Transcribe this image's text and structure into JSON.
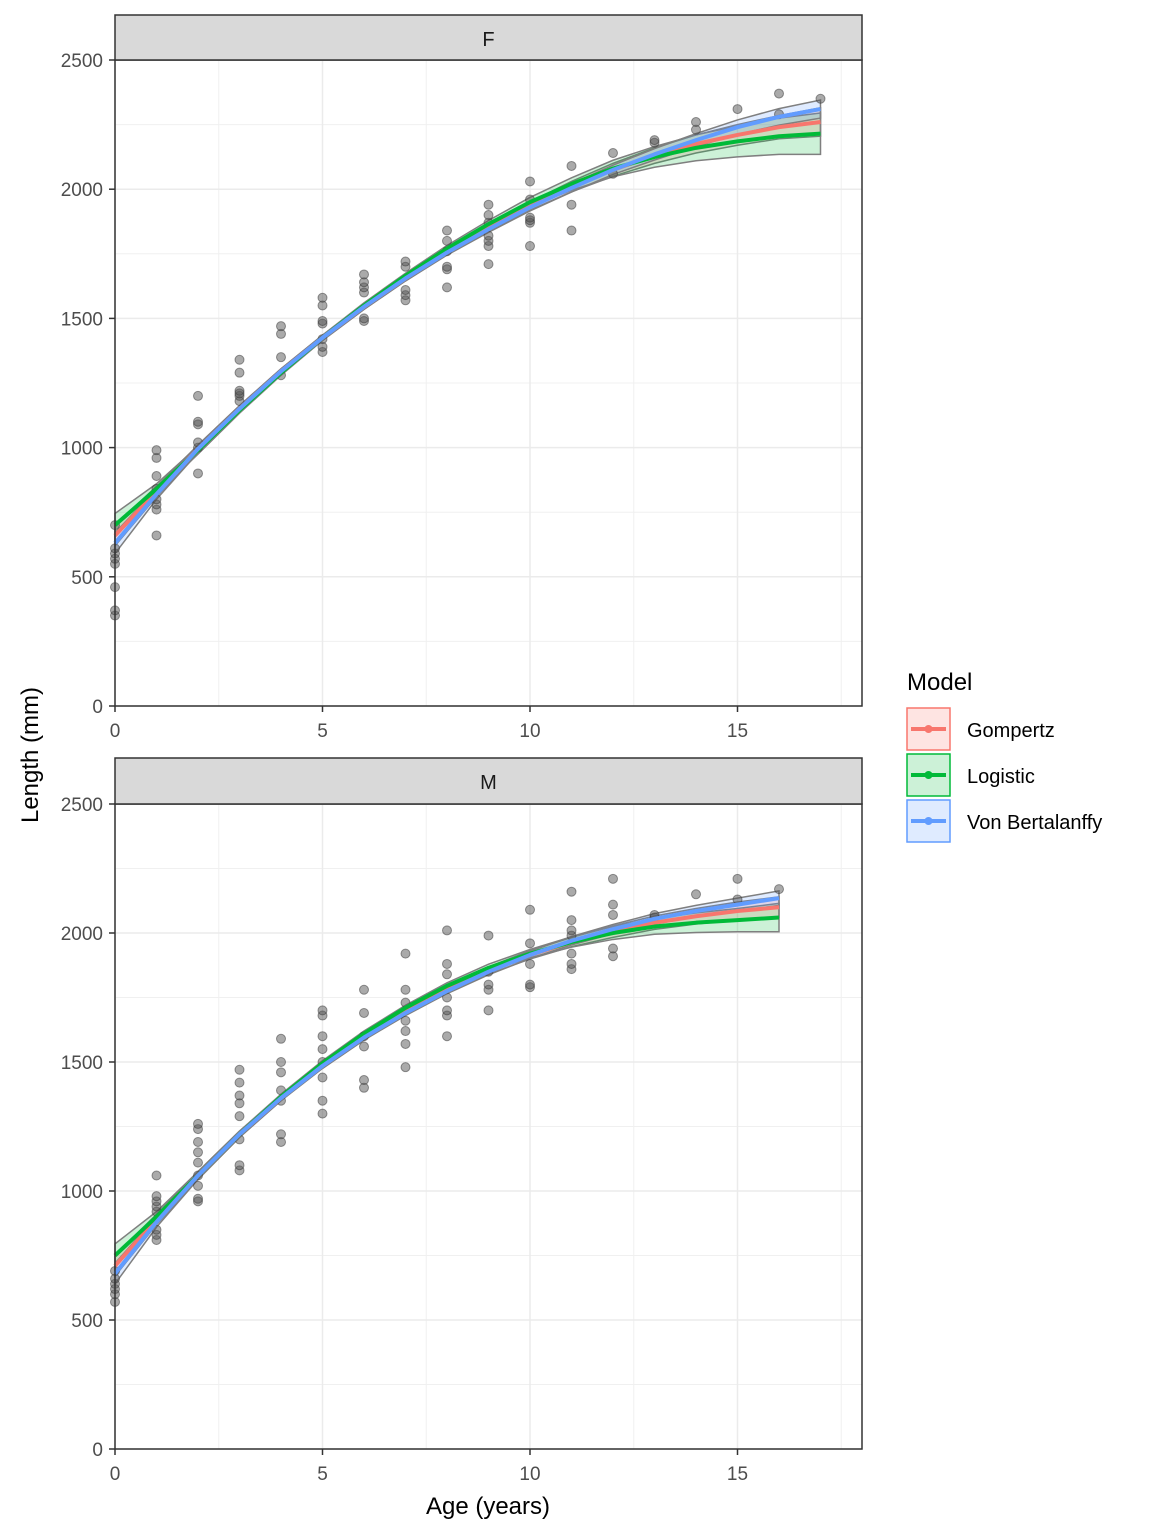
{
  "chart_data": {
    "type": "scatter",
    "xlabel": "Age (years)",
    "ylabel": "Length (mm)",
    "xlim": [
      0,
      18
    ],
    "ylim": [
      0,
      2500
    ],
    "x_ticks": [
      0,
      5,
      10,
      15
    ],
    "y_ticks": [
      0,
      500,
      1000,
      1500,
      2000,
      2500
    ],
    "grid": true,
    "legend": {
      "title": "Model",
      "position": "right",
      "entries": [
        {
          "name": "Gompertz",
          "color": "#F8766D"
        },
        {
          "name": "Logistic",
          "color": "#00BA38"
        },
        {
          "name": "Von Bertalanffy",
          "color": "#619CFF"
        }
      ]
    },
    "point_color": "#555555",
    "panels": [
      {
        "strip": "F",
        "points": {
          "0": [
            350,
            370,
            460,
            550,
            570,
            590,
            610,
            700
          ],
          "1": [
            660,
            760,
            780,
            800,
            840,
            890,
            960,
            990
          ],
          "2": [
            900,
            1000,
            1020,
            1090,
            1100,
            1200
          ],
          "3": [
            1180,
            1200,
            1210,
            1220,
            1290,
            1340
          ],
          "4": [
            1280,
            1350,
            1440,
            1470
          ],
          "5": [
            1370,
            1390,
            1420,
            1480,
            1490,
            1550,
            1580
          ],
          "6": [
            1490,
            1500,
            1600,
            1620,
            1640,
            1670
          ],
          "7": [
            1570,
            1590,
            1610,
            1700,
            1720
          ],
          "8": [
            1620,
            1690,
            1700,
            1760,
            1800,
            1840
          ],
          "9": [
            1710,
            1780,
            1800,
            1820,
            1870,
            1900,
            1940
          ],
          "10": [
            1780,
            1870,
            1880,
            1890,
            1960,
            2030
          ],
          "11": [
            1840,
            1940,
            2090
          ],
          "12": [
            2060,
            2140
          ],
          "13": [
            2180,
            2190
          ],
          "14": [
            2230,
            2260
          ],
          "15": [
            2310
          ],
          "16": [
            2290,
            2370
          ],
          "17": [
            2350
          ]
        },
        "models": [
          {
            "name": "Gompertz",
            "fit": [
              660,
              830,
              995,
              1150,
              1295,
              1425,
              1545,
              1655,
              1760,
              1850,
              1935,
              2010,
              2075,
              2130,
              2175,
              2210,
              2240,
              2260
            ],
            "lower": [
              620,
              810,
              980,
              1138,
              1285,
              1415,
              1535,
              1645,
              1748,
              1836,
              1919,
              1990,
              2050,
              2100,
              2140,
              2170,
              2195,
              2205
            ],
            "upper": [
              700,
              850,
              1010,
              1162,
              1305,
              1435,
              1555,
              1665,
              1772,
              1864,
              1951,
              2030,
              2100,
              2160,
              2210,
              2250,
              2285,
              2315
            ]
          },
          {
            "name": "Logistic",
            "fit": [
              700,
              840,
              990,
              1145,
              1290,
              1425,
              1550,
              1665,
              1770,
              1865,
              1950,
              2020,
              2080,
              2125,
              2160,
              2185,
              2205,
              2215
            ],
            "lower": [
              655,
              820,
              975,
              1133,
              1280,
              1415,
              1540,
              1655,
              1758,
              1851,
              1932,
              1996,
              2048,
              2085,
              2110,
              2125,
              2135,
              2135
            ],
            "upper": [
              745,
              860,
              1005,
              1157,
              1300,
              1435,
              1560,
              1675,
              1782,
              1879,
              1968,
              2044,
              2112,
              2165,
              2210,
              2245,
              2275,
              2295
            ]
          },
          {
            "name": "Von Bertalanffy",
            "fit": [
              630,
              820,
              995,
              1150,
              1295,
              1425,
              1545,
              1655,
              1755,
              1845,
              1930,
              2005,
              2075,
              2135,
              2190,
              2240,
              2280,
              2310
            ],
            "lower": [
              590,
              800,
              980,
              1138,
              1285,
              1415,
              1535,
              1645,
              1745,
              1833,
              1916,
              1989,
              2057,
              2113,
              2165,
              2212,
              2248,
              2275
            ],
            "upper": [
              670,
              840,
              1010,
              1162,
              1305,
              1435,
              1555,
              1665,
              1765,
              1857,
              1944,
              2021,
              2093,
              2157,
              2215,
              2268,
              2312,
              2345
            ]
          }
        ]
      },
      {
        "strip": "M",
        "points": {
          "0": [
            570,
            600,
            620,
            640,
            660,
            690
          ],
          "1": [
            810,
            830,
            850,
            920,
            940,
            960,
            980,
            1060
          ],
          "2": [
            960,
            970,
            1020,
            1060,
            1110,
            1150,
            1190,
            1240,
            1260
          ],
          "3": [
            1080,
            1100,
            1200,
            1290,
            1340,
            1370,
            1420,
            1470
          ],
          "4": [
            1190,
            1220,
            1350,
            1390,
            1460,
            1500,
            1590
          ],
          "5": [
            1300,
            1350,
            1440,
            1500,
            1550,
            1600,
            1680,
            1700
          ],
          "6": [
            1400,
            1430,
            1560,
            1600,
            1690,
            1780
          ],
          "7": [
            1480,
            1570,
            1620,
            1660,
            1730,
            1780,
            1920
          ],
          "8": [
            1600,
            1680,
            1700,
            1750,
            1840,
            1880,
            2010
          ],
          "9": [
            1700,
            1780,
            1800,
            1850,
            1990
          ],
          "10": [
            1790,
            1800,
            1880,
            1960,
            2090
          ],
          "11": [
            1860,
            1880,
            1920,
            1990,
            2010,
            2050,
            2160
          ],
          "12": [
            1910,
            1940,
            2070,
            2110,
            2210
          ],
          "13": [
            2060,
            2070
          ],
          "14": [
            2150
          ],
          "15": [
            2130,
            2210
          ],
          "16": [
            2170
          ]
        },
        "models": [
          {
            "name": "Gompertz",
            "fit": [
              710,
              890,
              1060,
              1220,
              1360,
              1490,
              1600,
              1700,
              1785,
              1855,
              1915,
              1965,
              2005,
              2040,
              2065,
              2085,
              2100
            ],
            "lower": [
              670,
              870,
              1045,
              1208,
              1350,
              1480,
              1590,
              1690,
              1773,
              1841,
              1899,
              1947,
              1983,
              2014,
              2035,
              2050,
              2060
            ],
            "upper": [
              750,
              910,
              1075,
              1232,
              1370,
              1500,
              1610,
              1710,
              1797,
              1869,
              1931,
              1983,
              2027,
              2066,
              2095,
              2120,
              2140
            ]
          },
          {
            "name": "Logistic",
            "fit": [
              750,
              900,
              1060,
              1220,
              1365,
              1495,
              1610,
              1710,
              1795,
              1865,
              1920,
              1965,
              2000,
              2025,
              2040,
              2050,
              2060
            ],
            "lower": [
              705,
              880,
              1045,
              1208,
              1355,
              1485,
              1600,
              1700,
              1783,
              1851,
              1904,
              1945,
              1975,
              1995,
              2002,
              2005,
              2005
            ],
            "upper": [
              795,
              920,
              1075,
              1232,
              1375,
              1505,
              1620,
              1720,
              1807,
              1879,
              1936,
              1985,
              2025,
              2055,
              2078,
              2095,
              2115
            ]
          },
          {
            "name": "Von Bertalanffy",
            "fit": [
              680,
              880,
              1060,
              1220,
              1360,
              1485,
              1595,
              1690,
              1775,
              1850,
              1915,
              1970,
              2015,
              2055,
              2085,
              2110,
              2135
            ],
            "lower": [
              640,
              860,
              1045,
              1208,
              1350,
              1475,
              1585,
              1680,
              1765,
              1838,
              1901,
              1954,
              1997,
              2035,
              2063,
              2085,
              2107
            ],
            "upper": [
              720,
              900,
              1075,
              1232,
              1370,
              1495,
              1605,
              1700,
              1785,
              1862,
              1929,
              1986,
              2033,
              2075,
              2107,
              2135,
              2163
            ]
          }
        ]
      }
    ]
  }
}
